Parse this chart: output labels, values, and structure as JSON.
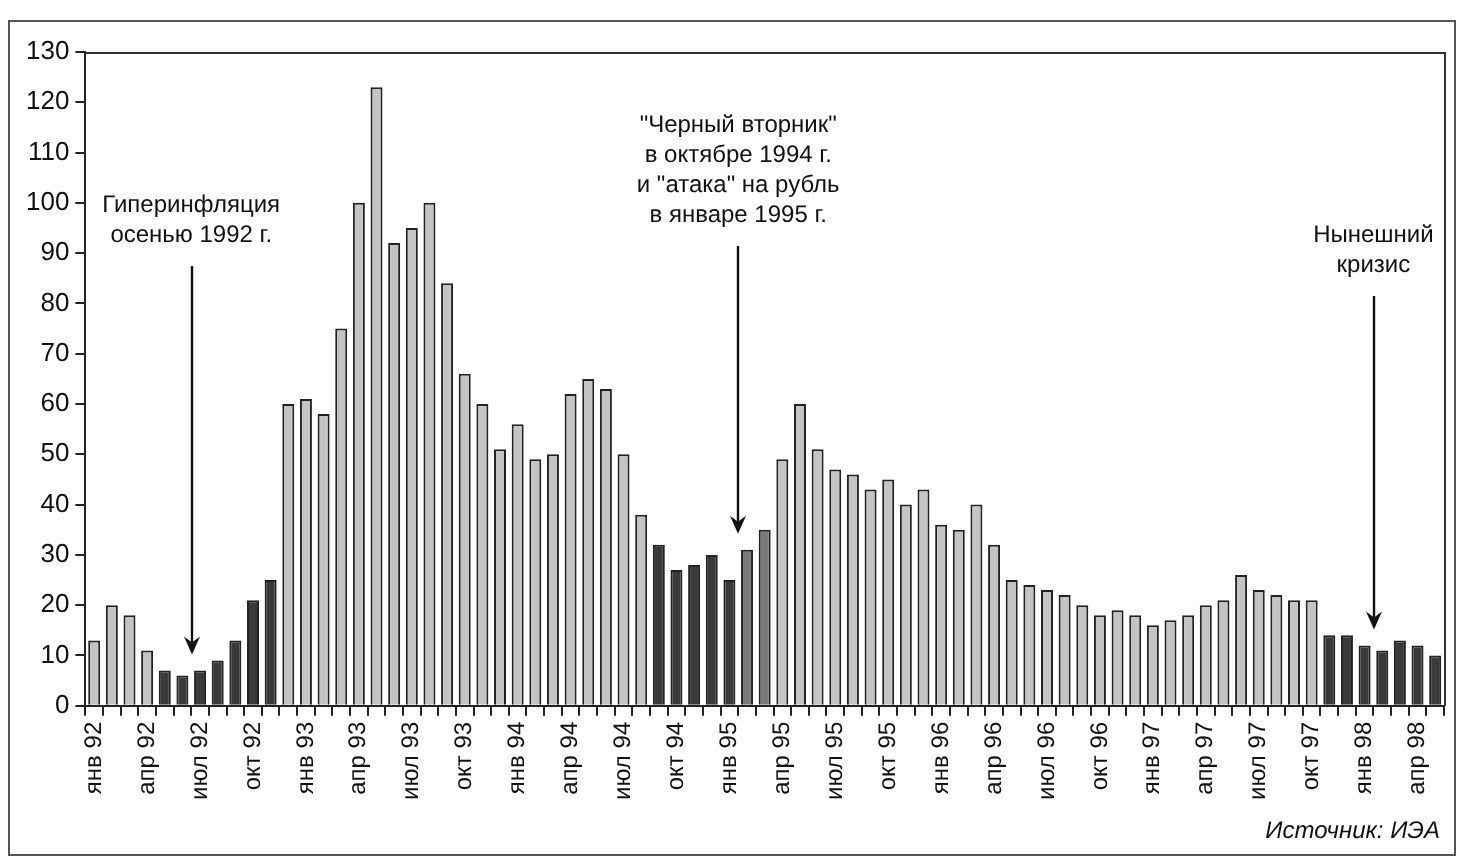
{
  "chart_data": {
    "type": "bar",
    "categories": [
      "янв 92",
      null,
      null,
      "апр 92",
      null,
      null,
      "июл 92",
      null,
      null,
      "окт 92",
      null,
      null,
      "янв 93",
      null,
      null,
      "апр 93",
      null,
      null,
      "июл 93",
      null,
      null,
      "окт 93",
      null,
      null,
      "янв 94",
      null,
      null,
      "апр 94",
      null,
      null,
      "июл 94",
      null,
      null,
      "окт 94",
      null,
      null,
      "янв 95",
      null,
      null,
      "апр 95",
      null,
      null,
      "июл 95",
      null,
      null,
      "окт 95",
      null,
      null,
      "янв 96",
      null,
      null,
      "апр 96",
      null,
      null,
      "июл 96",
      null,
      null,
      "окт 96",
      null,
      null,
      "янв 97",
      null,
      null,
      "апр 97",
      null,
      null,
      "июл 97",
      null,
      null,
      "окт 97",
      null,
      null,
      "янв 98",
      null,
      null,
      "апр 98",
      null
    ],
    "values": [
      13,
      20,
      18,
      11,
      7,
      6,
      7,
      9,
      13,
      21,
      25,
      60,
      61,
      58,
      75,
      100,
      123,
      92,
      95,
      100,
      84,
      66,
      60,
      51,
      56,
      49,
      50,
      62,
      65,
      63,
      50,
      38,
      32,
      27,
      28,
      30,
      25,
      31,
      35,
      49,
      60,
      51,
      47,
      46,
      43,
      45,
      40,
      43,
      36,
      35,
      40,
      32,
      25,
      24,
      23,
      22,
      20,
      18,
      19,
      18,
      16,
      17,
      18,
      20,
      21,
      26,
      23,
      22,
      21,
      21,
      14,
      14,
      12,
      11,
      13,
      12,
      10
    ],
    "colors": [
      "#c4c4c4",
      "#c4c4c4",
      "#c4c4c4",
      "#c4c4c4",
      "#3a3a3a",
      "#3a3a3a",
      "#3a3a3a",
      "#3a3a3a",
      "#3a3a3a",
      "#3a3a3a",
      "#3a3a3a",
      "#c4c4c4",
      "#c4c4c4",
      "#c4c4c4",
      "#c4c4c4",
      "#c4c4c4",
      "#c4c4c4",
      "#c4c4c4",
      "#c4c4c4",
      "#c4c4c4",
      "#c4c4c4",
      "#c4c4c4",
      "#c4c4c4",
      "#c4c4c4",
      "#c4c4c4",
      "#c4c4c4",
      "#c4c4c4",
      "#c4c4c4",
      "#c4c4c4",
      "#c4c4c4",
      "#c4c4c4",
      "#c4c4c4",
      "#3a3a3a",
      "#3a3a3a",
      "#3a3a3a",
      "#3a3a3a",
      "#3a3a3a",
      "#7a7a7a",
      "#7a7a7a",
      "#c4c4c4",
      "#c4c4c4",
      "#c4c4c4",
      "#c4c4c4",
      "#c4c4c4",
      "#c4c4c4",
      "#c4c4c4",
      "#c4c4c4",
      "#c4c4c4",
      "#c4c4c4",
      "#c4c4c4",
      "#c4c4c4",
      "#c4c4c4",
      "#c4c4c4",
      "#c4c4c4",
      "#c4c4c4",
      "#c4c4c4",
      "#c4c4c4",
      "#c4c4c4",
      "#c4c4c4",
      "#c4c4c4",
      "#c4c4c4",
      "#c4c4c4",
      "#c4c4c4",
      "#c4c4c4",
      "#c4c4c4",
      "#c4c4c4",
      "#c4c4c4",
      "#c4c4c4",
      "#c4c4c4",
      "#c4c4c4",
      "#3a3a3a",
      "#3a3a3a",
      "#3a3a3a",
      "#3a3a3a",
      "#3a3a3a",
      "#3a3a3a",
      "#3a3a3a"
    ],
    "ylim": [
      0,
      130
    ],
    "yticks": [
      0,
      10,
      20,
      30,
      40,
      50,
      60,
      70,
      80,
      90,
      100,
      110,
      120,
      130
    ],
    "grid": false,
    "legend": false,
    "annotations": [
      "Гиперинфляция\nосенью 1992 г.",
      "\"Черный вторник\"\nв октябре 1994 г.\nи \"атака\" на рубль\nв январе 1995 г.",
      "Нынешний\nкризис",
      "Источник: ИЭА"
    ]
  }
}
